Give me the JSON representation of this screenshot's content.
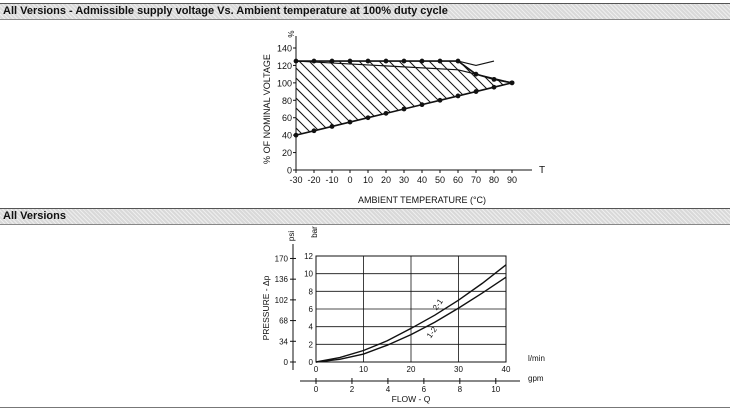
{
  "sections": [
    {
      "title": "All Versions - Admissible supply voltage Vs. Ambient temperature at 100% duty cycle"
    },
    {
      "title": "All Versions"
    }
  ],
  "chart_data": [
    {
      "type": "line",
      "title": "",
      "xlabel": "AMBIENT TEMPERATURE (°C)",
      "ylabel": "% OF NOMINAL VOLTAGE",
      "x_axis_end_label": "T",
      "y_axis_unit": "%",
      "xlim": [
        -30,
        90
      ],
      "ylim": [
        0,
        140
      ],
      "x_ticks": [
        "-30",
        "-20",
        "-10",
        "0",
        "10",
        "20",
        "30",
        "40",
        "50",
        "60",
        "70",
        "80",
        "90"
      ],
      "y_ticks": [
        "0",
        "20",
        "40",
        "60",
        "80",
        "100",
        "120",
        "140"
      ],
      "hatched_region": true,
      "series": [
        {
          "x": [
            -30,
            -20,
            -10,
            0,
            10,
            20,
            30,
            40,
            50,
            60,
            70,
            80,
            90
          ],
          "y": [
            125,
            125,
            125,
            125,
            125,
            125,
            125,
            125,
            125,
            125,
            110,
            104,
            100
          ]
        },
        {
          "x": [
            -30,
            -20,
            -10,
            0,
            10,
            20,
            30,
            40,
            50,
            60,
            70,
            80,
            90
          ],
          "y": [
            40,
            45,
            50,
            55,
            60,
            65,
            70,
            75,
            80,
            85,
            90,
            95,
            100
          ]
        },
        {
          "x": [
            -30,
            60,
            90
          ],
          "y": [
            125,
            115,
            100
          ]
        },
        {
          "x": [
            60,
            70,
            80
          ],
          "y": [
            125,
            120,
            125
          ]
        }
      ]
    },
    {
      "type": "line",
      "title": "",
      "xlabel": "FLOW - Q",
      "ylabel": "PRESSURE - Δp",
      "x_unit_primary": "l/min",
      "x_unit_secondary": "gpm",
      "y_unit_primary": "bar",
      "y_unit_secondary": "psi",
      "xlim": [
        0,
        40
      ],
      "ylim": [
        0,
        12
      ],
      "x_ticks": [
        "0",
        "10",
        "20",
        "30",
        "40"
      ],
      "x_ticks_secondary": [
        "0",
        "2",
        "4",
        "6",
        "8",
        "10"
      ],
      "y_ticks": [
        "0",
        "2",
        "4",
        "6",
        "8",
        "10",
        "12"
      ],
      "y_ticks_secondary": [
        "0",
        "34",
        "68",
        "102",
        "136",
        "170"
      ],
      "grid": true,
      "series": [
        {
          "name": "2-1",
          "x": [
            0,
            5,
            10,
            15,
            20,
            25,
            30,
            35,
            40
          ],
          "y": [
            0,
            0.5,
            1.3,
            2.4,
            3.8,
            5.3,
            7.0,
            8.9,
            11.0
          ]
        },
        {
          "name": "1-2",
          "x": [
            0,
            5,
            10,
            15,
            20,
            25,
            30,
            35,
            40
          ],
          "y": [
            0,
            0.3,
            0.9,
            1.9,
            3.1,
            4.5,
            6.1,
            7.8,
            9.6
          ]
        }
      ]
    }
  ]
}
